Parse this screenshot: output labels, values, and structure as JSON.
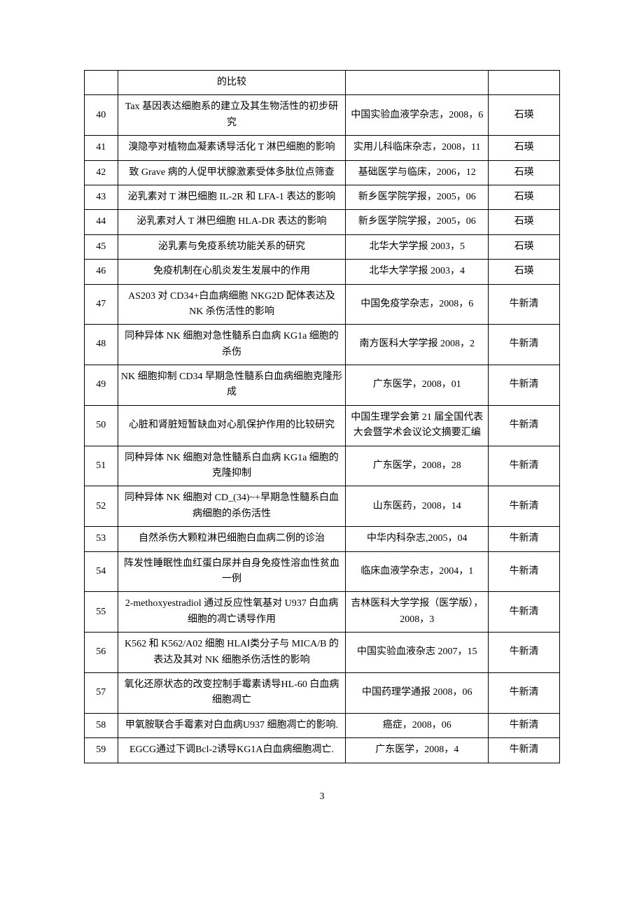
{
  "table": {
    "first_row": {
      "num": "",
      "title": "的比较",
      "journal": "",
      "author": ""
    },
    "rows": [
      {
        "num": "40",
        "title": "Tax 基因表达细胞系的建立及其生物活性的初步研究",
        "journal": "中国实验血液学杂志，2008，6",
        "author": "石瑛"
      },
      {
        "num": "41",
        "title": "溴隐亭对植物血凝素诱导活化 T 淋巴细胞的影响",
        "journal": "实用儿科临床杂志，2008，11",
        "author": "石瑛"
      },
      {
        "num": "42",
        "title": "致 Grave 病的人促甲状腺激素受体多肽位点筛查",
        "journal": "基础医学与临床，2006，12",
        "author": "石瑛"
      },
      {
        "num": "43",
        "title": "泌乳素对 T 淋巴细胞 IL-2R 和 LFA-1 表达的影响",
        "journal": "新乡医学院学报，2005，06",
        "author": "石瑛"
      },
      {
        "num": "44",
        "title": "泌乳素对人 T 淋巴细胞 HLA-DR 表达的影响",
        "journal": "新乡医学院学报，2005，06",
        "author": "石瑛"
      },
      {
        "num": "45",
        "title": "泌乳素与免疫系统功能关系的研究",
        "journal": "北华大学学报 2003，5",
        "author": "石瑛"
      },
      {
        "num": "46",
        "title": "免疫机制在心肌炎发生发展中的作用",
        "journal": "北华大学学报 2003，4",
        "author": "石瑛"
      },
      {
        "num": "47",
        "title": "AS203 对 CD34+白血病细胞 NKG2D 配体表达及 NK 杀伤活性的影响",
        "journal": "中国免疫学杂志，2008，6",
        "author": "牛新清"
      },
      {
        "num": "48",
        "title": "同种异体 NK 细胞对急性髓系白血病 KG1a 细胞的杀伤",
        "journal": "南方医科大学学报 2008，2",
        "author": "牛新清"
      },
      {
        "num": "49",
        "title": "NK 细胞抑制 CD34 早期急性髓系白血病细胞克隆形成",
        "journal": "广东医学，2008，01",
        "author": "牛新清"
      },
      {
        "num": "50",
        "title": "心脏和肾脏短暂缺血对心肌保护作用的比较研究",
        "journal": "中国生理学会第 21 届全国代表大会暨学术会议论文摘要汇编",
        "author": "牛新清"
      },
      {
        "num": "51",
        "title": "同种异体 NK 细胞对急性髓系白血病 KG1a 细胞的克隆抑制",
        "journal": "广东医学，2008，28",
        "author": "牛新清"
      },
      {
        "num": "52",
        "title": "同种异体 NK 细胞对 CD_(34)~+早期急性髓系白血病细胞的杀伤活性",
        "journal": "山东医药，2008，14",
        "author": "牛新清"
      },
      {
        "num": "53",
        "title": "自然杀伤大颗粒淋巴细胞白血病二例的诊治",
        "journal": "中华内科杂志,2005，04",
        "author": "牛新清"
      },
      {
        "num": "54",
        "title": "阵发性睡眠性血红蛋白尿并自身免疫性溶血性贫血一例",
        "journal": "临床血液学杂志，2004，1",
        "author": "牛新清"
      },
      {
        "num": "55",
        "title": "2-methoxyestradiol 通过反应性氧基对 U937 白血病细胞的凋亡诱导作用",
        "journal": "吉林医科大学学报（医学版），2008，3",
        "author": "牛新清"
      },
      {
        "num": "56",
        "title": "K562 和 K562/A02 细胞 HLAⅠ类分子与 MICA/B 的表达及其对 NK 细胞杀伤活性的影响",
        "journal": "中国实验血液杂志 2007，15",
        "author": "牛新清"
      },
      {
        "num": "57",
        "title": "氧化还原状态的改变控制手霉素诱导HL-60 白血病细胞凋亡",
        "journal": "中国药理学通报 2008，06",
        "author": "牛新清"
      },
      {
        "num": "58",
        "title": "甲氧胺联合手霉素对白血病U937 细胞凋亡的影响.",
        "journal": "癌症，2008，06",
        "author": "牛新清"
      },
      {
        "num": "59",
        "title": "EGCG通过下调Bcl-2诱导KG1A白血病细胞凋亡.",
        "journal": "广东医学，2008，4",
        "author": "牛新清"
      }
    ]
  },
  "page_number": "3"
}
